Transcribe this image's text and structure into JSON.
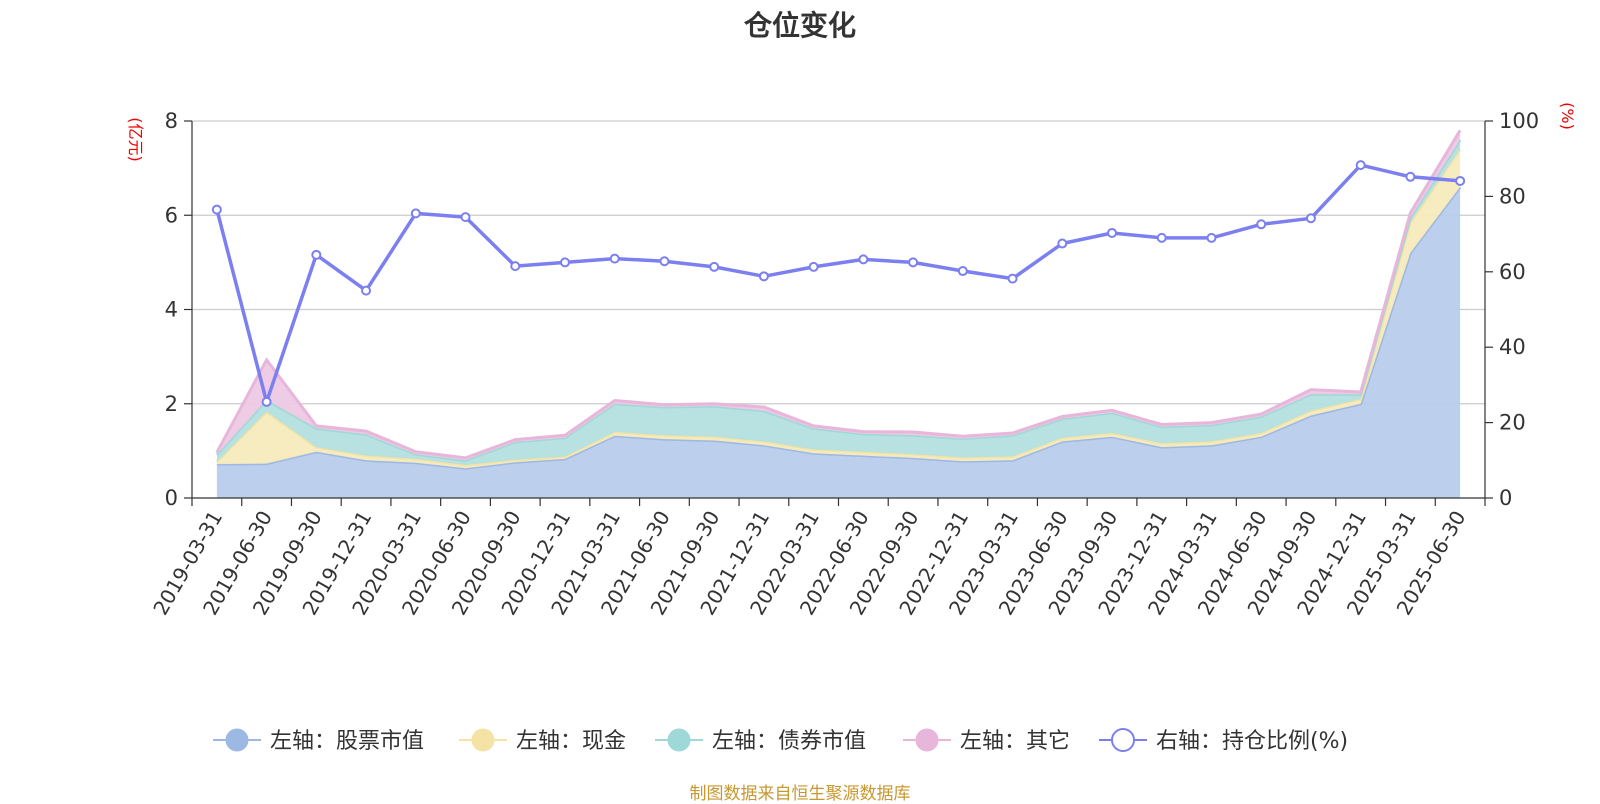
{
  "chart_data": {
    "type": "area",
    "title": "仓位变化",
    "source_note": "制图数据来自恒生聚源数据库",
    "left_axis_unit": "(亿元)",
    "right_axis_unit": "(%)",
    "ylim_left": [
      0,
      8
    ],
    "ylim_right": [
      0,
      100
    ],
    "yticks_left": [
      "0",
      "2",
      "4",
      "6",
      "8"
    ],
    "yticks_right": [
      "0",
      "20",
      "40",
      "60",
      "80",
      "100"
    ],
    "grid": true,
    "legend_position": "bottom",
    "categories": [
      "2019-03-31",
      "2019-06-30",
      "2019-09-30",
      "2019-12-31",
      "2020-03-31",
      "2020-06-30",
      "2020-09-30",
      "2020-12-31",
      "2021-03-31",
      "2021-06-30",
      "2021-09-30",
      "2021-12-31",
      "2022-03-31",
      "2022-06-30",
      "2022-09-30",
      "2022-12-31",
      "2023-03-31",
      "2023-06-30",
      "2023-09-30",
      "2023-12-31",
      "2024-03-31",
      "2024-06-30",
      "2024-09-30",
      "2024-12-31",
      "2025-03-31",
      "2025-06-30"
    ],
    "stacked_series": [
      {
        "name": "左轴：股票市值",
        "axis": "left",
        "color": "#9db8e3",
        "fill": "#b8cdec",
        "values": [
          0.72,
          0.73,
          0.98,
          0.8,
          0.75,
          0.63,
          0.76,
          0.83,
          1.32,
          1.25,
          1.22,
          1.12,
          0.95,
          0.9,
          0.85,
          0.78,
          0.8,
          1.2,
          1.3,
          1.08,
          1.12,
          1.3,
          1.75,
          2.0,
          5.2,
          6.6
        ]
      },
      {
        "name": "左轴：现金",
        "axis": "left",
        "color": "#f5e3a6",
        "fill": "#f7ebbd",
        "values": [
          0.05,
          1.1,
          0.1,
          0.1,
          0.08,
          0.07,
          0.05,
          0.05,
          0.08,
          0.08,
          0.08,
          0.08,
          0.08,
          0.08,
          0.08,
          0.08,
          0.08,
          0.08,
          0.08,
          0.08,
          0.08,
          0.08,
          0.1,
          0.1,
          0.65,
          0.8
        ]
      },
      {
        "name": "左轴：债券市值",
        "axis": "left",
        "color": "#9fd8d8",
        "fill": "#b3e0df",
        "values": [
          0.15,
          0.25,
          0.4,
          0.45,
          0.1,
          0.1,
          0.38,
          0.4,
          0.6,
          0.6,
          0.65,
          0.65,
          0.45,
          0.38,
          0.4,
          0.4,
          0.45,
          0.4,
          0.43,
          0.35,
          0.35,
          0.35,
          0.35,
          0.1,
          0.1,
          0.2
        ]
      },
      {
        "name": "左轴：其它",
        "axis": "left",
        "color": "#e7b6da",
        "fill": "#eec9e4",
        "values": [
          0.05,
          0.85,
          0.05,
          0.07,
          0.05,
          0.05,
          0.05,
          0.05,
          0.07,
          0.05,
          0.05,
          0.08,
          0.05,
          0.05,
          0.07,
          0.05,
          0.05,
          0.05,
          0.05,
          0.05,
          0.05,
          0.05,
          0.1,
          0.05,
          0.1,
          0.2
        ]
      }
    ],
    "line_series": {
      "name": "右轴：持仓比例(%)",
      "axis": "right",
      "color": "#7b7ff0",
      "values": [
        76.5,
        25.5,
        64.5,
        55.0,
        75.5,
        74.5,
        61.5,
        62.5,
        63.5,
        62.8,
        61.3,
        58.8,
        61.3,
        63.3,
        62.5,
        60.2,
        58.2,
        67.5,
        70.3,
        69.0,
        69.0,
        72.6,
        74.2,
        88.3,
        85.2,
        84.1
      ]
    }
  }
}
